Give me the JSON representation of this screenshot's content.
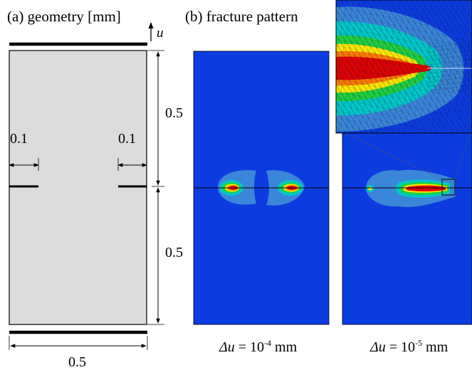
{
  "panel_a": {
    "title": "(a) geometry [mm]",
    "u_label": "u",
    "dims": {
      "height_top": "0.5",
      "height_bottom": "0.5",
      "width": "0.5",
      "notch_left": "0.1",
      "notch_right": "0.1"
    }
  },
  "panel_b": {
    "title": "(b) fracture pattern",
    "captions": {
      "left_prefix": "Δu",
      "left_mid": " = 10",
      "left_exp": "-4",
      "left_unit": " mm",
      "right_prefix": "Δu",
      "right_mid": " = 10",
      "right_exp": "-5",
      "right_unit": " mm"
    }
  },
  "colors": {
    "specimen_fill": "#dcdcdc",
    "field_background": "#0c3ce0",
    "contour_light": "#3a86d8",
    "contour_cyan": "#00c8c8",
    "contour_green": "#20d040",
    "contour_yellow": "#ffe800",
    "contour_orange": "#ff7a00",
    "contour_red": "#e00000"
  }
}
